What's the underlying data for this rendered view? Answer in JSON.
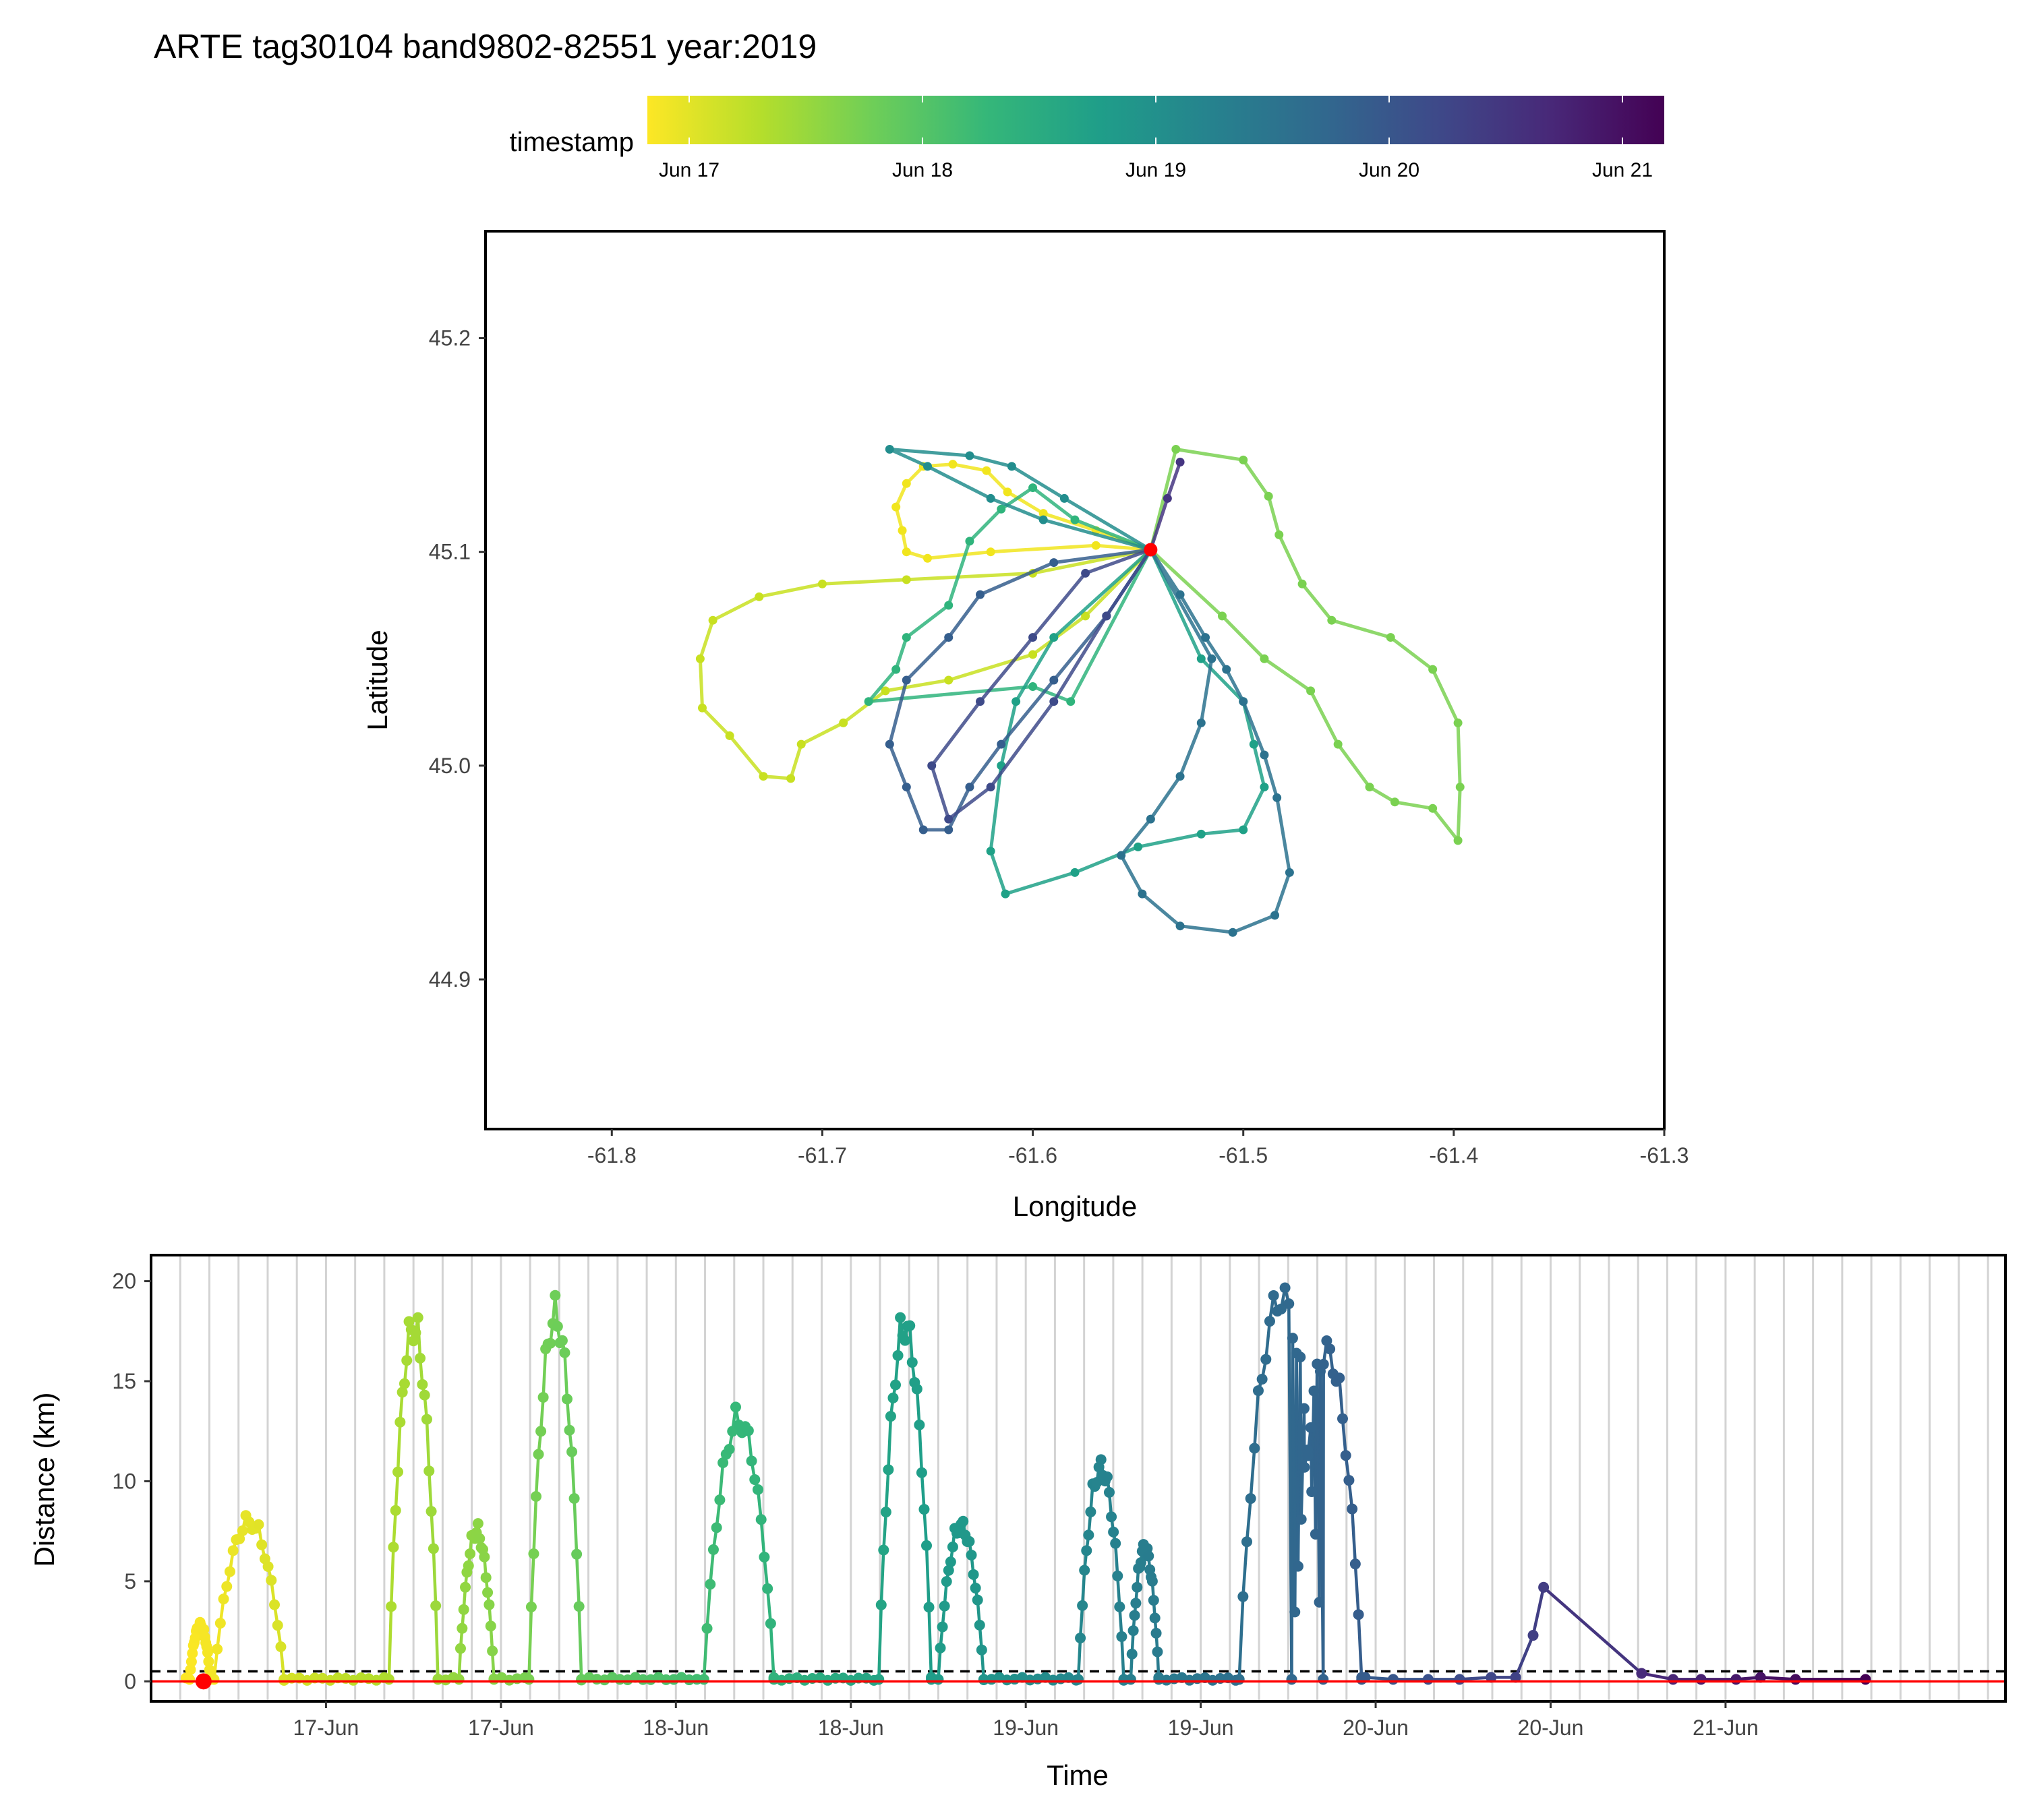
{
  "chart_data": [
    {
      "type": "scatter",
      "title": "ARTE tag30104 band9802-82551 year:2019",
      "xlabel": "Longitude",
      "ylabel": "Latitude",
      "xlim": [
        -61.86,
        -61.3
      ],
      "ylim": [
        44.83,
        45.25
      ],
      "xticks": [
        "-61.8",
        "-61.7",
        "-61.6",
        "-61.5",
        "-61.4",
        "-61.3"
      ],
      "yticks": [
        "44.9",
        "45.0",
        "45.1",
        "45.2"
      ],
      "grid": false,
      "origin": {
        "x": -61.544,
        "y": 45.101,
        "color": "#ff0000"
      },
      "color_legend": {
        "title": "timestamp",
        "placement": "top",
        "ticks": [
          "Jun 17",
          "Jun 18",
          "Jun 19",
          "Jun 20",
          "Jun 21"
        ],
        "colors": [
          "#fde725",
          "#b5de2b",
          "#6ece58",
          "#35b779",
          "#1f9e89",
          "#26828e",
          "#31688e",
          "#3e4989",
          "#482878",
          "#440154"
        ]
      },
      "series": [
        {
          "color": "#f1e51d",
          "points": [
            [
              -61.544,
              45.101
            ],
            [
              -61.57,
              45.11
            ],
            [
              -61.595,
              45.118
            ],
            [
              -61.612,
              45.128
            ],
            [
              -61.622,
              45.138
            ],
            [
              -61.638,
              45.141
            ],
            [
              -61.652,
              45.14
            ],
            [
              -61.66,
              45.132
            ],
            [
              -61.665,
              45.121
            ],
            [
              -61.662,
              45.11
            ],
            [
              -61.66,
              45.1
            ],
            [
              -61.65,
              45.097
            ],
            [
              -61.62,
              45.1
            ],
            [
              -61.57,
              45.103
            ],
            [
              -61.544,
              45.101
            ]
          ]
        },
        {
          "color": "#c8e020",
          "points": [
            [
              -61.544,
              45.101
            ],
            [
              -61.6,
              45.09
            ],
            [
              -61.66,
              45.087
            ],
            [
              -61.7,
              45.085
            ],
            [
              -61.73,
              45.079
            ],
            [
              -61.752,
              45.068
            ],
            [
              -61.758,
              45.05
            ],
            [
              -61.757,
              45.027
            ],
            [
              -61.744,
              45.014
            ],
            [
              -61.728,
              44.995
            ],
            [
              -61.715,
              44.994
            ],
            [
              -61.71,
              45.01
            ],
            [
              -61.69,
              45.02
            ],
            [
              -61.67,
              45.035
            ],
            [
              -61.64,
              45.04
            ],
            [
              -61.6,
              45.052
            ],
            [
              -61.575,
              45.07
            ],
            [
              -61.544,
              45.101
            ]
          ]
        },
        {
          "color": "#7ad151",
          "points": [
            [
              -61.544,
              45.101
            ],
            [
              -61.532,
              45.148
            ],
            [
              -61.5,
              45.143
            ],
            [
              -61.488,
              45.126
            ],
            [
              -61.483,
              45.108
            ],
            [
              -61.472,
              45.085
            ],
            [
              -61.458,
              45.068
            ],
            [
              -61.43,
              45.06
            ],
            [
              -61.41,
              45.045
            ],
            [
              -61.398,
              45.02
            ],
            [
              -61.397,
              44.99
            ],
            [
              -61.398,
              44.965
            ],
            [
              -61.41,
              44.98
            ],
            [
              -61.428,
              44.983
            ],
            [
              -61.44,
              44.99
            ],
            [
              -61.455,
              45.01
            ],
            [
              -61.468,
              45.035
            ],
            [
              -61.49,
              45.05
            ],
            [
              -61.51,
              45.07
            ],
            [
              -61.544,
              45.101
            ]
          ]
        },
        {
          "color": "#2fb47c",
          "points": [
            [
              -61.544,
              45.101
            ],
            [
              -61.58,
              45.115
            ],
            [
              -61.6,
              45.13
            ],
            [
              -61.615,
              45.12
            ],
            [
              -61.63,
              45.105
            ],
            [
              -61.64,
              45.075
            ],
            [
              -61.66,
              45.06
            ],
            [
              -61.665,
              45.045
            ],
            [
              -61.678,
              45.03
            ],
            [
              -61.6,
              45.037
            ],
            [
              -61.582,
              45.03
            ],
            [
              -61.544,
              45.101
            ]
          ]
        },
        {
          "color": "#1fa187",
          "points": [
            [
              -61.544,
              45.101
            ],
            [
              -61.59,
              45.06
            ],
            [
              -61.608,
              45.03
            ],
            [
              -61.615,
              45.0
            ],
            [
              -61.62,
              44.96
            ],
            [
              -61.613,
              44.94
            ],
            [
              -61.58,
              44.95
            ],
            [
              -61.55,
              44.962
            ],
            [
              -61.52,
              44.968
            ],
            [
              -61.5,
              44.97
            ],
            [
              -61.49,
              44.99
            ],
            [
              -61.495,
              45.01
            ],
            [
              -61.5,
              45.03
            ],
            [
              -61.52,
              45.05
            ],
            [
              -61.544,
              45.101
            ]
          ]
        },
        {
          "color": "#228d8d",
          "points": [
            [
              -61.544,
              45.101
            ],
            [
              -61.585,
              45.125
            ],
            [
              -61.61,
              45.14
            ],
            [
              -61.63,
              45.145
            ],
            [
              -61.668,
              45.148
            ],
            [
              -61.65,
              45.14
            ],
            [
              -61.62,
              45.125
            ],
            [
              -61.595,
              45.115
            ],
            [
              -61.544,
              45.101
            ]
          ]
        },
        {
          "color": "#2c728e",
          "points": [
            [
              -61.544,
              45.101
            ],
            [
              -61.53,
              45.08
            ],
            [
              -61.518,
              45.06
            ],
            [
              -61.508,
              45.045
            ],
            [
              -61.5,
              45.03
            ],
            [
              -61.49,
              45.005
            ],
            [
              -61.484,
              44.985
            ],
            [
              -61.478,
              44.95
            ],
            [
              -61.485,
              44.93
            ],
            [
              -61.505,
              44.922
            ],
            [
              -61.53,
              44.925
            ],
            [
              -61.548,
              44.94
            ],
            [
              -61.558,
              44.958
            ],
            [
              -61.544,
              44.975
            ],
            [
              -61.53,
              44.995
            ],
            [
              -61.52,
              45.02
            ],
            [
              -61.515,
              45.05
            ],
            [
              -61.544,
              45.101
            ]
          ]
        },
        {
          "color": "#355e8d",
          "points": [
            [
              -61.544,
              45.101
            ],
            [
              -61.59,
              45.095
            ],
            [
              -61.625,
              45.08
            ],
            [
              -61.64,
              45.06
            ],
            [
              -61.66,
              45.04
            ],
            [
              -61.668,
              45.01
            ],
            [
              -61.66,
              44.99
            ],
            [
              -61.652,
              44.97
            ],
            [
              -61.64,
              44.97
            ],
            [
              -61.63,
              44.99
            ],
            [
              -61.615,
              45.01
            ],
            [
              -61.59,
              45.04
            ],
            [
              -61.565,
              45.07
            ],
            [
              -61.544,
              45.101
            ]
          ]
        },
        {
          "color": "#3e4a89",
          "points": [
            [
              -61.544,
              45.101
            ],
            [
              -61.575,
              45.09
            ],
            [
              -61.6,
              45.06
            ],
            [
              -61.625,
              45.03
            ],
            [
              -61.648,
              45.0
            ],
            [
              -61.64,
              44.975
            ],
            [
              -61.62,
              44.99
            ],
            [
              -61.59,
              45.03
            ],
            [
              -61.565,
              45.07
            ],
            [
              -61.544,
              45.101
            ]
          ]
        },
        {
          "color": "#453581",
          "points": [
            [
              -61.544,
              45.101
            ],
            [
              -61.536,
              45.125
            ],
            [
              -61.53,
              45.142
            ]
          ]
        }
      ]
    },
    {
      "type": "scatter",
      "xlabel": "Time",
      "ylabel": "Distance (km)",
      "xlim": [
        16.25,
        21.55
      ],
      "ylim": [
        -1,
        21.3
      ],
      "yticks": [
        "0",
        "5",
        "10",
        "15",
        "20"
      ],
      "xtick_positions": [
        16.75,
        17.25,
        17.75,
        18.25,
        18.75,
        19.25,
        19.75,
        20.25,
        20.75
      ],
      "xtick_labels": [
        "17-Jun",
        "17-Jun",
        "18-Jun",
        "18-Jun",
        "19-Jun",
        "19-Jun",
        "20-Jun",
        "20-Jun",
        "21-Jun"
      ],
      "grid_interval_hours": 2,
      "hline_dashed": 0.5,
      "hline_solid": 0,
      "hline_solid_color": "#ff0000",
      "start_point": {
        "x": 16.4,
        "y": 0,
        "color": "#ff0000"
      },
      "color_range": [
        16.35,
        21.1
      ],
      "trips": [
        {
          "start": 16.36,
          "end": 16.42,
          "peak": 3.0
        },
        {
          "start": 16.43,
          "end": 16.63,
          "peak": 8.5
        },
        {
          "start": 16.93,
          "end": 17.07,
          "peak": 18.9
        },
        {
          "start": 17.13,
          "end": 17.23,
          "peak": 8.0
        },
        {
          "start": 17.33,
          "end": 17.48,
          "peak": 19.4
        },
        {
          "start": 17.83,
          "end": 18.03,
          "peak": 13.9
        },
        {
          "start": 18.33,
          "end": 18.48,
          "peak": 18.9
        },
        {
          "start": 18.5,
          "end": 18.63,
          "peak": 8.3
        },
        {
          "start": 18.9,
          "end": 19.03,
          "peak": 11.4
        },
        {
          "start": 19.05,
          "end": 19.13,
          "peak": 7.1
        },
        {
          "start": 19.36,
          "end": 19.6,
          "peak": 20.5
        },
        {
          "start": 19.51,
          "end": 19.71,
          "peak": 17.6
        }
      ],
      "tail": [
        [
          19.72,
          0.2
        ],
        [
          19.8,
          0.1
        ],
        [
          19.9,
          0.1
        ],
        [
          19.99,
          0.1
        ],
        [
          20.08,
          0.2
        ],
        [
          20.15,
          0.2
        ],
        [
          20.2,
          2.3
        ],
        [
          20.23,
          4.7
        ],
        [
          20.51,
          0.4
        ],
        [
          20.6,
          0.1
        ],
        [
          20.68,
          0.1
        ],
        [
          20.78,
          0.1
        ],
        [
          20.85,
          0.2
        ],
        [
          20.95,
          0.1
        ],
        [
          21.15,
          0.1
        ]
      ]
    }
  ]
}
